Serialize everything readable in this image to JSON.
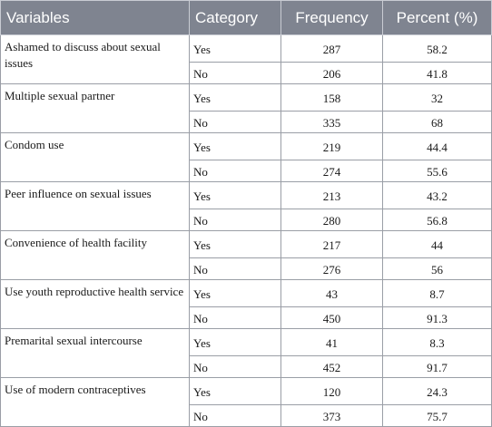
{
  "table": {
    "headers": [
      "Variables",
      "Category",
      "Frequency",
      "Percent (%)"
    ],
    "groups": [
      {
        "variable": "Ashamed to discuss about sexual issues",
        "rows": [
          {
            "category": "Yes",
            "frequency": "287",
            "percent": "58.2"
          },
          {
            "category": "No",
            "frequency": "206",
            "percent": "41.8"
          }
        ]
      },
      {
        "variable": "Multiple sexual partner",
        "rows": [
          {
            "category": "Yes",
            "frequency": "158",
            "percent": "32"
          },
          {
            "category": "No",
            "frequency": "335",
            "percent": "68"
          }
        ]
      },
      {
        "variable": "Condom use",
        "rows": [
          {
            "category": "Yes",
            "frequency": "219",
            "percent": "44.4"
          },
          {
            "category": "No",
            "frequency": "274",
            "percent": "55.6"
          }
        ]
      },
      {
        "variable": "Peer influence on sexual issues",
        "rows": [
          {
            "category": "Yes",
            "frequency": "213",
            "percent": "43.2"
          },
          {
            "category": "No",
            "frequency": "280",
            "percent": "56.8"
          }
        ]
      },
      {
        "variable": "Convenience of health facility",
        "rows": [
          {
            "category": "Yes",
            "frequency": "217",
            "percent": "44"
          },
          {
            "category": "No",
            "frequency": "276",
            "percent": "56"
          }
        ]
      },
      {
        "variable": "Use youth reproductive health service",
        "rows": [
          {
            "category": "Yes",
            "frequency": "43",
            "percent": "8.7"
          },
          {
            "category": "No",
            "frequency": "450",
            "percent": "91.3"
          }
        ]
      },
      {
        "variable": "Premarital sexual intercourse",
        "rows": [
          {
            "category": "Yes",
            "frequency": "41",
            "percent": "8.3"
          },
          {
            "category": "No",
            "frequency": "452",
            "percent": "91.7"
          }
        ]
      },
      {
        "variable": "Use of modern contraceptives",
        "rows": [
          {
            "category": "Yes",
            "frequency": "120",
            "percent": "24.3"
          },
          {
            "category": "No",
            "frequency": "373",
            "percent": "75.7"
          }
        ]
      }
    ]
  }
}
